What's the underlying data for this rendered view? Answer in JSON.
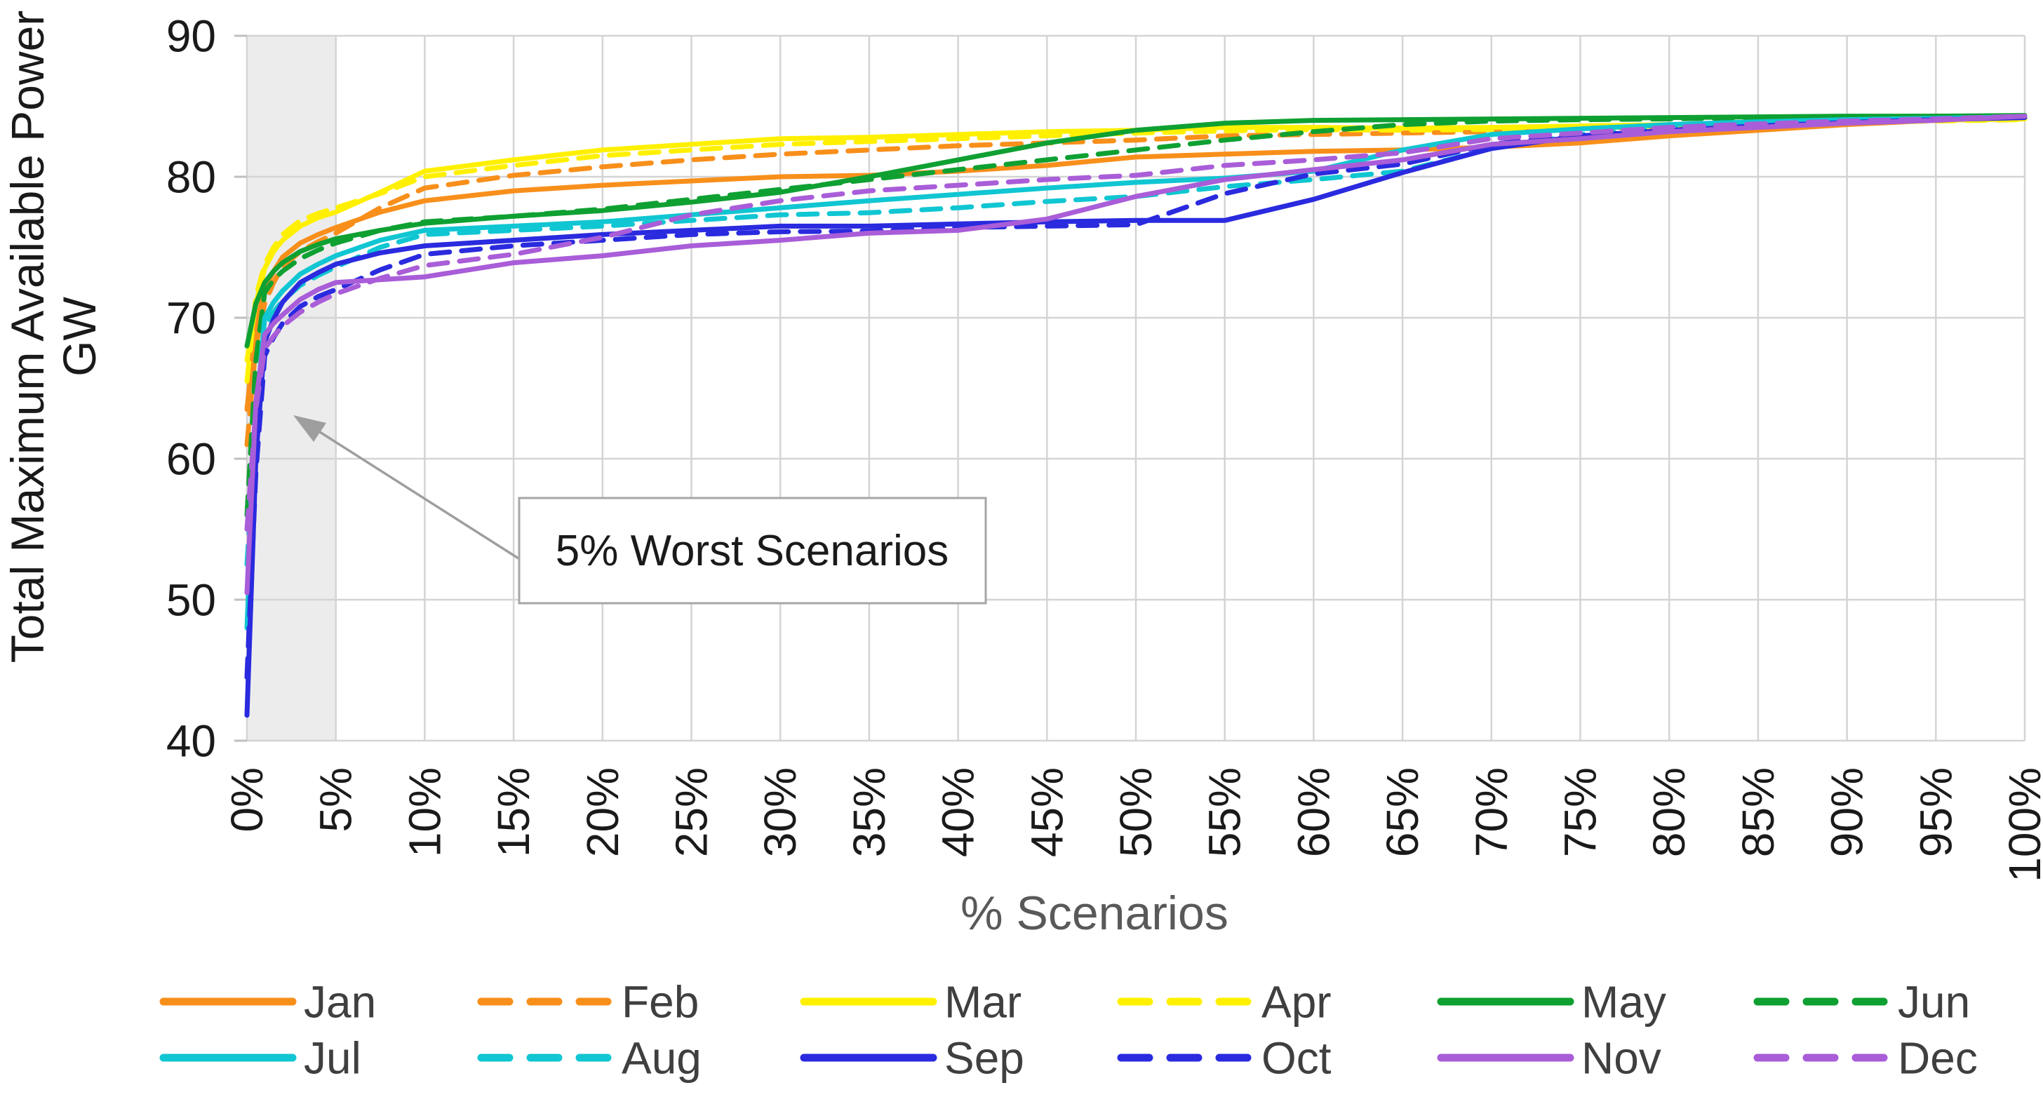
{
  "chart_data": {
    "type": "line",
    "title": "",
    "xlabel": "% Scenarios",
    "ylabel": "Total Maximum Available Power",
    "ylabel_unit": "GW",
    "xlim": [
      0,
      100
    ],
    "ylim": [
      40,
      90
    ],
    "y_ticks": [
      90,
      80,
      70,
      60,
      50,
      40
    ],
    "x_tick_labels": [
      "0%",
      "5%",
      "10%",
      "15%",
      "20%",
      "25%",
      "30%",
      "35%",
      "40%",
      "45%",
      "50%",
      "55%",
      "60%",
      "65%",
      "70%",
      "75%",
      "80%",
      "85%",
      "90%",
      "95%",
      "100%"
    ],
    "grid": true,
    "gridline_color": "#d4d4d4",
    "legend_position": "bottom",
    "legend_rows": [
      [
        "Jan",
        "Feb",
        "Mar",
        "Apr",
        "May",
        "Jun"
      ],
      [
        "Jul",
        "Aug",
        "Sep",
        "Oct",
        "Nov",
        "Dec"
      ]
    ],
    "shaded_region": {
      "x_start_pct": 0,
      "x_end_pct": 5,
      "color": "#ececec"
    },
    "annotation": {
      "text": "5% Worst Scenarios"
    },
    "x_pct": [
      0,
      0.5,
      1,
      1.5,
      2,
      3,
      4,
      5,
      7.5,
      10,
      15,
      20,
      25,
      30,
      35,
      40,
      45,
      50,
      55,
      60,
      65,
      70,
      75,
      80,
      85,
      90,
      95,
      100
    ],
    "series": [
      {
        "name": "Jan",
        "color": "#F88F1B",
        "dashed": false,
        "values": [
          63.5,
          69.5,
          72.0,
          73.3,
          74.3,
          75.3,
          75.9,
          76.4,
          77.5,
          78.3,
          79.0,
          79.4,
          79.7,
          80.0,
          80.1,
          80.4,
          80.8,
          81.4,
          81.6,
          81.8,
          81.9,
          82.1,
          82.4,
          82.9,
          83.3,
          83.7,
          84.0,
          84.2
        ]
      },
      {
        "name": "Feb",
        "color": "#F88F1B",
        "dashed": true,
        "values": [
          61.0,
          68.0,
          71.0,
          72.5,
          73.6,
          74.7,
          75.4,
          76.0,
          77.8,
          79.2,
          80.1,
          80.7,
          81.2,
          81.6,
          81.9,
          82.2,
          82.4,
          82.6,
          82.9,
          83.0,
          83.1,
          83.2,
          83.4,
          83.6,
          83.8,
          84.0,
          84.1,
          84.2
        ]
      },
      {
        "name": "Mar",
        "color": "#FFF000",
        "dashed": false,
        "values": [
          67.0,
          71.0,
          73.5,
          74.7,
          75.5,
          76.5,
          77.1,
          77.5,
          78.9,
          80.4,
          81.2,
          81.9,
          82.3,
          82.7,
          82.8,
          83.0,
          83.2,
          83.3,
          83.5,
          83.5,
          83.45,
          83.5,
          83.6,
          83.7,
          83.8,
          83.9,
          84.0,
          84.1
        ]
      },
      {
        "name": "Apr",
        "color": "#FFF000",
        "dashed": true,
        "values": [
          65.5,
          71.5,
          73.8,
          75.0,
          75.9,
          76.9,
          77.4,
          77.8,
          78.8,
          80.0,
          80.8,
          81.5,
          81.9,
          82.3,
          82.5,
          82.7,
          82.9,
          83.1,
          83.25,
          83.35,
          83.3,
          83.35,
          83.45,
          83.55,
          83.7,
          83.85,
          83.95,
          84.05
        ]
      },
      {
        "name": "May",
        "color": "#0FA032",
        "dashed": false,
        "values": [
          68.0,
          71.0,
          72.5,
          73.3,
          73.9,
          74.7,
          75.2,
          75.6,
          76.2,
          76.7,
          77.2,
          77.6,
          78.2,
          78.9,
          80.0,
          81.2,
          82.4,
          83.3,
          83.8,
          84.0,
          84.05,
          84.1,
          84.15,
          84.2,
          84.25,
          84.3,
          84.3,
          84.35
        ]
      },
      {
        "name": "Jun",
        "color": "#0FA032",
        "dashed": true,
        "values": [
          56.0,
          67.0,
          71.8,
          72.7,
          73.3,
          74.2,
          74.8,
          75.3,
          76.2,
          76.8,
          77.2,
          77.7,
          78.4,
          79.1,
          79.8,
          80.5,
          81.2,
          81.9,
          82.6,
          83.2,
          83.7,
          83.95,
          84.05,
          84.1,
          84.2,
          84.25,
          84.3,
          84.3
        ]
      },
      {
        "name": "Jul",
        "color": "#10C6D2",
        "dashed": false,
        "values": [
          48.0,
          63.0,
          70.0,
          71.1,
          71.9,
          73.1,
          73.8,
          74.4,
          75.5,
          76.2,
          76.5,
          76.8,
          77.3,
          77.8,
          78.3,
          78.75,
          79.2,
          79.6,
          79.9,
          80.4,
          81.9,
          83.0,
          83.4,
          83.7,
          83.9,
          84.05,
          84.15,
          84.25
        ]
      },
      {
        "name": "Aug",
        "color": "#10C6D2",
        "dashed": true,
        "values": [
          52.5,
          62.5,
          69.3,
          70.4,
          71.2,
          72.3,
          73.0,
          73.6,
          75.0,
          75.9,
          76.2,
          76.5,
          76.9,
          77.3,
          77.45,
          77.8,
          78.25,
          78.6,
          79.3,
          79.8,
          80.4,
          82.0,
          83.0,
          83.4,
          83.7,
          83.9,
          84.05,
          84.2
        ]
      },
      {
        "name": "Sep",
        "color": "#2A2ADF",
        "dashed": false,
        "values": [
          41.8,
          60.0,
          68.3,
          69.9,
          71.1,
          72.5,
          73.2,
          73.8,
          74.6,
          75.1,
          75.5,
          75.9,
          76.2,
          76.5,
          76.5,
          76.65,
          76.8,
          76.9,
          76.9,
          78.4,
          80.3,
          82.0,
          82.9,
          83.3,
          83.6,
          83.85,
          84.05,
          84.2
        ]
      },
      {
        "name": "Oct",
        "color": "#2A2ADF",
        "dashed": true,
        "values": [
          44.5,
          59.0,
          67.3,
          68.6,
          69.6,
          70.8,
          71.5,
          72.0,
          73.4,
          74.5,
          75.1,
          75.5,
          75.9,
          76.1,
          76.15,
          76.4,
          76.5,
          76.6,
          78.8,
          80.2,
          80.9,
          82.3,
          83.0,
          83.4,
          83.65,
          83.9,
          84.1,
          84.25
        ]
      },
      {
        "name": "Nov",
        "color": "#A95DD8",
        "dashed": false,
        "values": [
          50.5,
          64.0,
          68.8,
          69.6,
          70.2,
          71.3,
          72.0,
          72.5,
          72.7,
          72.9,
          73.9,
          74.4,
          75.1,
          75.5,
          76.0,
          76.2,
          77.0,
          78.6,
          79.8,
          80.5,
          81.2,
          82.3,
          82.7,
          83.2,
          83.5,
          83.8,
          84.0,
          84.3
        ]
      },
      {
        "name": "Dec",
        "color": "#A95DD8",
        "dashed": true,
        "values": [
          55.0,
          63.5,
          67.8,
          68.7,
          69.4,
          70.4,
          71.1,
          71.7,
          72.8,
          73.7,
          74.5,
          75.7,
          77.3,
          78.3,
          79.0,
          79.4,
          79.8,
          80.1,
          80.8,
          81.2,
          81.7,
          82.7,
          83.1,
          83.5,
          83.75,
          83.95,
          84.1,
          84.3
        ]
      }
    ]
  }
}
